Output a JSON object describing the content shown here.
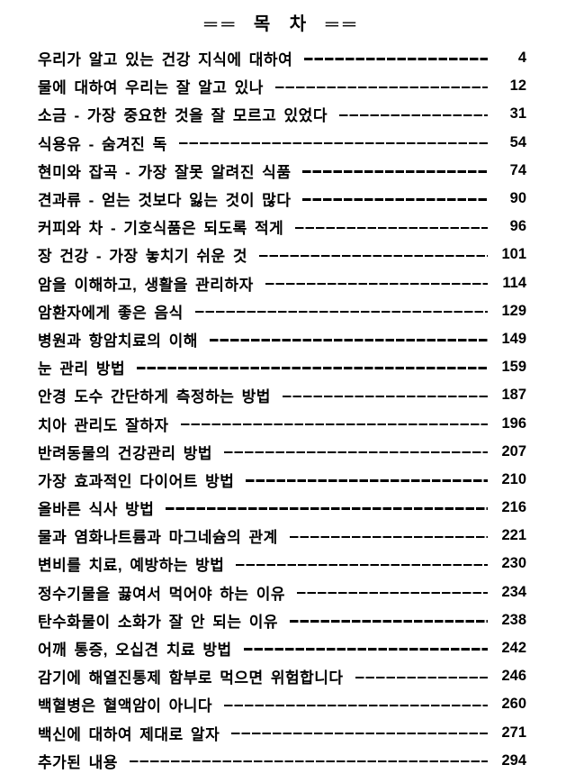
{
  "colors": {
    "ink": "#000000",
    "background": "#ffffff"
  },
  "page": {
    "title": "══ 목 차 ══"
  },
  "toc": {
    "entries": [
      {
        "title": "우리가 알고 있는 건강 지식에 대하여",
        "page": "4"
      },
      {
        "title": "물에 대하여 우리는 잘 알고 있나",
        "page": "12"
      },
      {
        "title": "소금 - 가장 중요한 것을 잘 모르고 있었다",
        "page": "31"
      },
      {
        "title": "식용유 - 숨겨진 독",
        "page": "54"
      },
      {
        "title": "현미와 잡곡 - 가장 잘못 알려진 식품",
        "page": "74"
      },
      {
        "title": "견과류 - 얻는 것보다 잃는 것이 많다",
        "page": "90"
      },
      {
        "title": "커피와 차 - 기호식품은 되도록 적게",
        "page": "96"
      },
      {
        "title": "장 건강 - 가장 놓치기 쉬운 것",
        "page": "101"
      },
      {
        "title": "암을 이해하고, 생활을 관리하자",
        "page": "114"
      },
      {
        "title": "암환자에게 좋은 음식",
        "page": "129"
      },
      {
        "title": "병원과 항암치료의 이해",
        "page": "149"
      },
      {
        "title": "눈 관리 방법",
        "page": "159"
      },
      {
        "title": "안경 도수 간단하게 측정하는 방법",
        "page": "187"
      },
      {
        "title": "치아 관리도 잘하자",
        "page": "196"
      },
      {
        "title": "반려동물의 건강관리 방법",
        "page": "207"
      },
      {
        "title": "가장 효과적인 다이어트 방법",
        "page": "210"
      },
      {
        "title": "올바른 식사 방법",
        "page": "216"
      },
      {
        "title": "물과 염화나트륨과 마그네슘의 관계",
        "page": "221"
      },
      {
        "title": "변비를 치료, 예방하는 방법",
        "page": "230"
      },
      {
        "title": "정수기물을 끓여서 먹어야 하는 이유",
        "page": "234"
      },
      {
        "title": "탄수화물이 소화가 잘 안 되는 이유",
        "page": "238"
      },
      {
        "title": "어깨 통증, 오십견 치료 방법",
        "page": "242"
      },
      {
        "title": "감기에 해열진통제 함부로 먹으면 위험합니다",
        "page": "246"
      },
      {
        "title": "백혈병은 혈액암이 아니다",
        "page": "260"
      },
      {
        "title": "백신에 대하여 제대로 알자",
        "page": "271"
      },
      {
        "title": "추가된 내용",
        "page": "294"
      }
    ]
  }
}
